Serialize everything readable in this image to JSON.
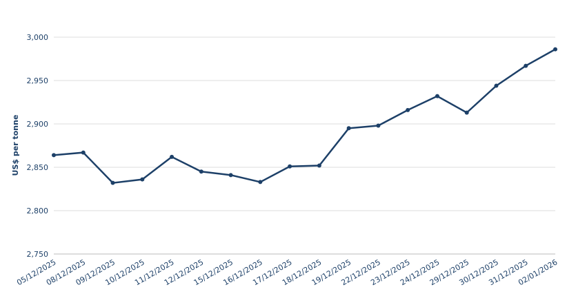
{
  "chart_data": {
    "type": "line",
    "y_label": "US$ per tonne",
    "categories": [
      "05/12/2025",
      "08/12/2025",
      "09/12/2025",
      "10/12/2025",
      "11/12/2025",
      "12/12/2025",
      "15/12/2025",
      "16/12/2025",
      "17/12/2025",
      "18/12/2025",
      "19/12/2025",
      "22/12/2025",
      "23/12/2025",
      "24/12/2025",
      "29/12/2025",
      "30/12/2025",
      "31/12/2025",
      "02/01/2026"
    ],
    "series": [
      {
        "name": "US$ per tonne",
        "color": "#1d4068",
        "values": [
          2864,
          2867,
          2832,
          2836,
          2862,
          2845,
          2841,
          2833,
          2851,
          2852,
          2895,
          2898,
          2916,
          2932,
          2913,
          2944,
          2967,
          2986
        ]
      }
    ],
    "ylim": [
      2750,
      3000
    ],
    "yticks": [
      {
        "value": 2750,
        "label": "2,750"
      },
      {
        "value": 2800,
        "label": "2,800"
      },
      {
        "value": 2850,
        "label": "2,850"
      },
      {
        "value": 2900,
        "label": "2,900"
      },
      {
        "value": 2950,
        "label": "2,950"
      },
      {
        "value": 3000,
        "label": "3,000"
      }
    ],
    "grid": true
  }
}
